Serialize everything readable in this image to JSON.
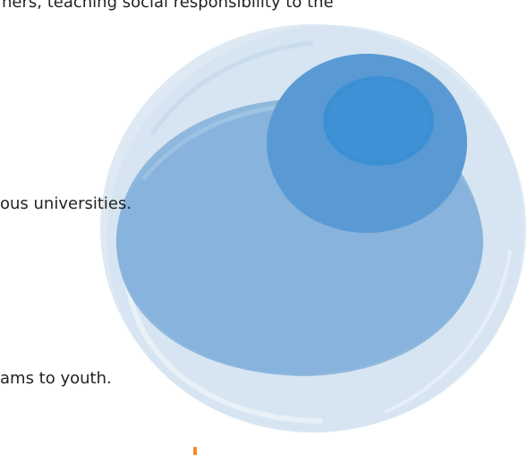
{
  "text_lines": {
    "line_1": "hers, teaching social responsibility to the",
    "line_2": "ous universities.",
    "line_3": "ams to youth."
  },
  "colors": {
    "accent": "#f28c28",
    "outer_circle": "#d6e4f1",
    "middle_circle": "#86b3dc",
    "inner_circle": "#5b9bd5",
    "core_circle": "#3d8fd4"
  }
}
